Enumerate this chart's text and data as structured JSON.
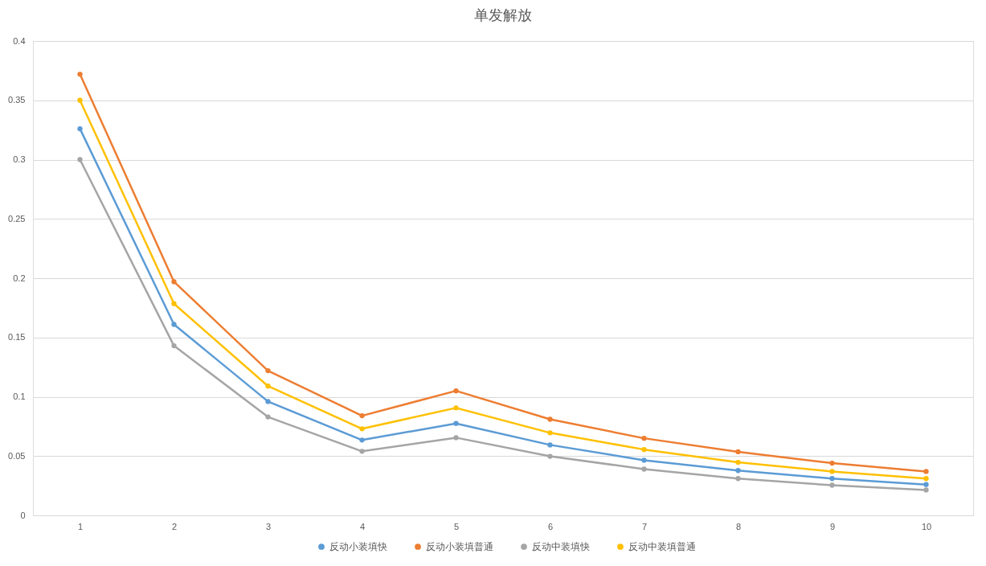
{
  "chart_data": {
    "type": "line",
    "title": "单发解放",
    "categories": [
      "1",
      "2",
      "3",
      "4",
      "5",
      "6",
      "7",
      "8",
      "9",
      "10"
    ],
    "series": [
      {
        "name": "反动小装填快",
        "color": "#5b9bd5",
        "values": [
          0.326,
          0.161,
          0.096,
          0.0635,
          0.0775,
          0.0594,
          0.0465,
          0.0378,
          0.031,
          0.026
        ]
      },
      {
        "name": "反动小装填普通",
        "color": "#ed7d31",
        "values": [
          0.372,
          0.197,
          0.122,
          0.084,
          0.105,
          0.081,
          0.065,
          0.0536,
          0.044,
          0.037
        ]
      },
      {
        "name": "反动中装填快",
        "color": "#a5a5a5",
        "values": [
          0.3,
          0.143,
          0.083,
          0.054,
          0.0655,
          0.0498,
          0.039,
          0.031,
          0.0254,
          0.0214
        ]
      },
      {
        "name": "反动中装填普通",
        "color": "#ffc000",
        "values": [
          0.35,
          0.1785,
          0.109,
          0.073,
          0.0906,
          0.0696,
          0.0555,
          0.0447,
          0.037,
          0.031
        ]
      }
    ],
    "ylim": [
      0,
      0.4
    ],
    "yticks": [
      0,
      0.05,
      0.1,
      0.15,
      0.2,
      0.25,
      0.3,
      0.35,
      0.4
    ],
    "grid": "y",
    "legend": "bottom",
    "marker": "circle",
    "line_style": "solid"
  }
}
